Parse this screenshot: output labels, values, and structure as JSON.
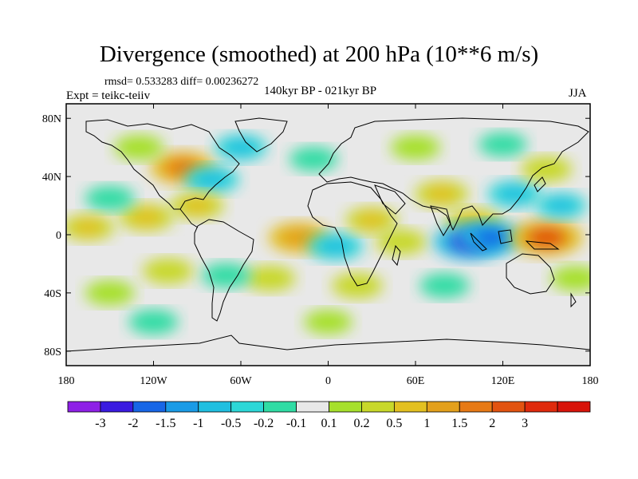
{
  "map": {
    "title": "Divergence (smoothed) at 200 hPa (10**6 m/s)",
    "stats": "rmsd= 0.533283 diff= 0.00236272",
    "experiment": "Expt = teikc-teiiv",
    "period": "140kyr BP - 021kyr BP",
    "season": "JJA",
    "lat_ticks": [
      {
        "value": 80,
        "label": "80N"
      },
      {
        "value": 40,
        "label": "40N"
      },
      {
        "value": 0,
        "label": "0"
      },
      {
        "value": -40,
        "label": "40S"
      },
      {
        "value": -80,
        "label": "80S"
      }
    ],
    "lon_ticks": [
      {
        "value": -180,
        "label": "180"
      },
      {
        "value": -120,
        "label": "120W"
      },
      {
        "value": -60,
        "label": "60W"
      },
      {
        "value": 0,
        "label": "0"
      },
      {
        "value": 60,
        "label": "60E"
      },
      {
        "value": 120,
        "label": "120E"
      },
      {
        "value": 180,
        "label": "180"
      }
    ],
    "colorbar": {
      "colors": [
        "#8e20e6",
        "#3a1be0",
        "#1766e6",
        "#1a9be6",
        "#20bfe0",
        "#2cd7d7",
        "#30dca4",
        "#e8e8e8",
        "#a6e02c",
        "#c8d82a",
        "#e3c021",
        "#e3a01c",
        "#e77a16",
        "#e25310",
        "#df2a0c",
        "#d8140a"
      ],
      "labels": [
        "-3",
        "-2",
        "-1.5",
        "-1",
        "-0.5",
        "-0.2",
        "-0.1",
        "0.1",
        "0.2",
        "0.5",
        "1",
        "1.5",
        "2",
        "3"
      ]
    },
    "field_features": [
      {
        "lon": -100,
        "lat": 46,
        "value": 1.6
      },
      {
        "lon": -80,
        "lat": 38,
        "value": -0.8
      },
      {
        "lon": -60,
        "lat": 60,
        "value": -0.6
      },
      {
        "lon": -90,
        "lat": 20,
        "value": 0.7
      },
      {
        "lon": -125,
        "lat": 12,
        "value": 0.8
      },
      {
        "lon": -150,
        "lat": 25,
        "value": -0.4
      },
      {
        "lon": -165,
        "lat": 5,
        "value": 0.6
      },
      {
        "lon": -20,
        "lat": -2,
        "value": 1.3
      },
      {
        "lon": 5,
        "lat": -8,
        "value": -0.8
      },
      {
        "lon": 30,
        "lat": 10,
        "value": 0.6
      },
      {
        "lon": 50,
        "lat": -5,
        "value": 0.5
      },
      {
        "lon": 78,
        "lat": 28,
        "value": 0.7
      },
      {
        "lon": 100,
        "lat": 8,
        "value": 1.0
      },
      {
        "lon": 97,
        "lat": -5,
        "value": -2.1
      },
      {
        "lon": 112,
        "lat": -2,
        "value": -1.5
      },
      {
        "lon": 150,
        "lat": -2,
        "value": 2.2
      },
      {
        "lon": 128,
        "lat": 28,
        "value": -0.7
      },
      {
        "lon": 160,
        "lat": 20,
        "value": -0.5
      },
      {
        "lon": 170,
        "lat": -30,
        "value": 0.4
      },
      {
        "lon": -40,
        "lat": -30,
        "value": 0.5
      },
      {
        "lon": -70,
        "lat": -28,
        "value": -0.4
      },
      {
        "lon": -110,
        "lat": -25,
        "value": 0.5
      },
      {
        "lon": -150,
        "lat": -40,
        "value": 0.4
      },
      {
        "lon": 20,
        "lat": -35,
        "value": 0.5
      },
      {
        "lon": 80,
        "lat": -35,
        "value": -0.4
      },
      {
        "lon": -120,
        "lat": -60,
        "value": -0.4
      },
      {
        "lon": 0,
        "lat": -60,
        "value": 0.3
      },
      {
        "lon": 60,
        "lat": 60,
        "value": 0.4
      },
      {
        "lon": 120,
        "lat": 62,
        "value": -0.3
      },
      {
        "lon": -130,
        "lat": 60,
        "value": 0.4
      },
      {
        "lon": -10,
        "lat": 52,
        "value": -0.3
      },
      {
        "lon": 150,
        "lat": 45,
        "value": 0.5
      }
    ]
  }
}
